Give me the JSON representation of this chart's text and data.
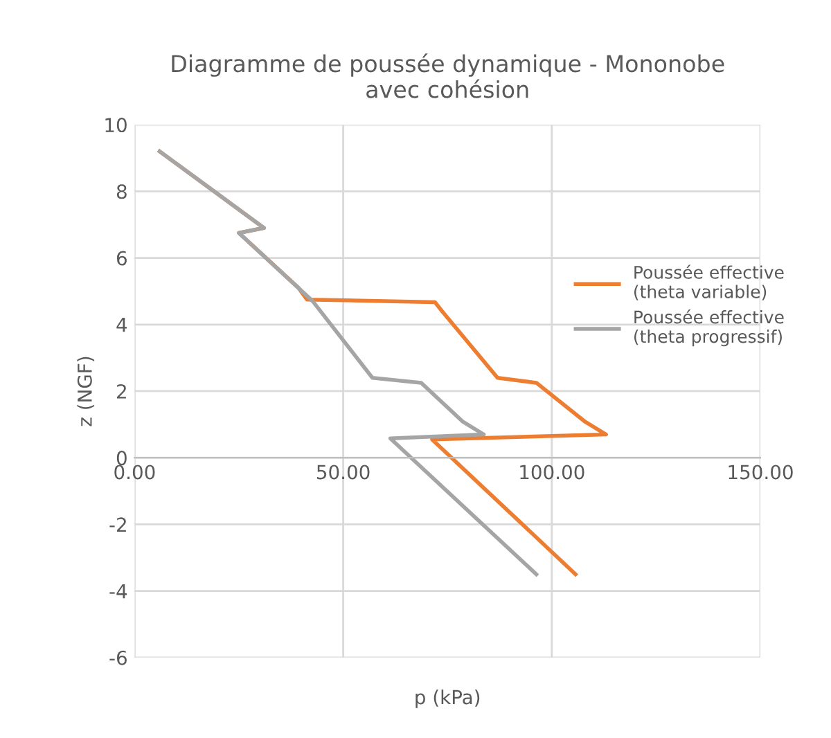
{
  "chart_data": {
    "type": "line",
    "title": "Diagramme de poussée dynamique - Mononobe\navec cohésion",
    "xlabel": "p (kPa)",
    "ylabel": "z (NGF)",
    "series": [
      {
        "name": "Poussée effective\n(theta variable)",
        "color": "#ed7d31",
        "x": [
          6,
          31,
          25,
          39.3,
          41.3,
          72,
          73.7,
          87,
          96.3,
          108,
          113,
          71.3,
          105.7
        ],
        "values": [
          9.2,
          6.9,
          6.75,
          5.1,
          4.75,
          4.67,
          4.4,
          2.4,
          2.25,
          1.08,
          0.7,
          0.55,
          -3.5
        ]
      },
      {
        "name": "Poussée effective\n(theta progressif)",
        "color": "#a5a5a5",
        "x": [
          6,
          31,
          25,
          42.7,
          57,
          68.7,
          78.7,
          83.7,
          61.3,
          96.3
        ],
        "values": [
          9.2,
          6.9,
          6.75,
          4.7,
          2.4,
          2.25,
          1.08,
          0.7,
          0.58,
          -3.5
        ]
      }
    ],
    "xlim": [
      0,
      150
    ],
    "xticks": [
      {
        "value": 0,
        "label": "0.00"
      },
      {
        "value": 50,
        "label": "50.00"
      },
      {
        "value": 100,
        "label": "100.00"
      },
      {
        "value": 150,
        "label": "150.00"
      }
    ],
    "ylim": [
      -6,
      10
    ],
    "yticks": [
      -6,
      -4,
      -2,
      0,
      2,
      4,
      6,
      8,
      10
    ],
    "grid": true,
    "legend": "right",
    "marker": "none",
    "line_style": "solid"
  }
}
